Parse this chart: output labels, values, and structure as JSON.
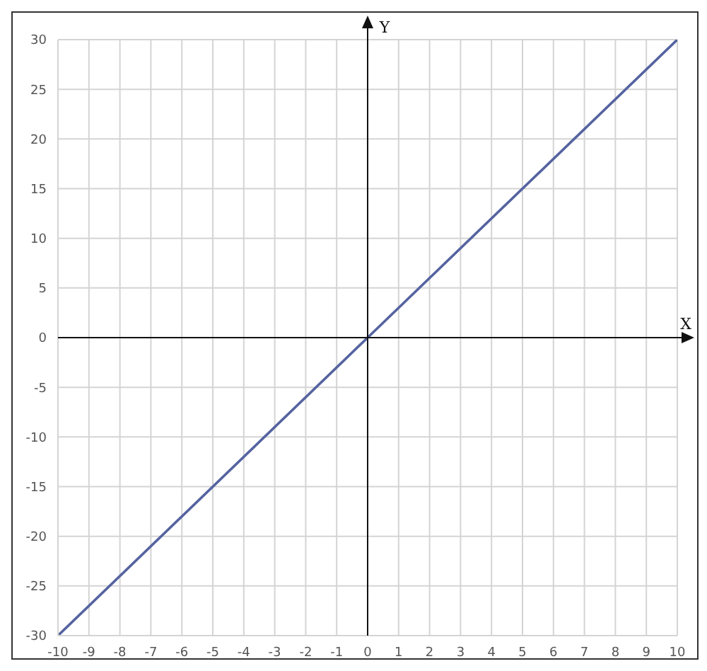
{
  "chart_data": {
    "type": "line",
    "xlabel": "X",
    "ylabel": "Y",
    "x": [
      -10,
      0,
      10
    ],
    "series": [
      {
        "color": "#5563a0",
        "values": [
          -30,
          0,
          30
        ]
      }
    ],
    "xlim": [
      -10,
      10
    ],
    "ylim": [
      -30,
      30
    ],
    "xticks": [
      -10,
      -9,
      -8,
      -7,
      -6,
      -5,
      -4,
      -3,
      -2,
      -1,
      0,
      1,
      2,
      3,
      4,
      5,
      6,
      7,
      8,
      9,
      10
    ],
    "yticks": [
      -30,
      -25,
      -20,
      -15,
      -10,
      -5,
      0,
      5,
      10,
      15,
      20,
      25,
      30
    ],
    "grid": true,
    "marker": "none",
    "line_style": "solid"
  }
}
